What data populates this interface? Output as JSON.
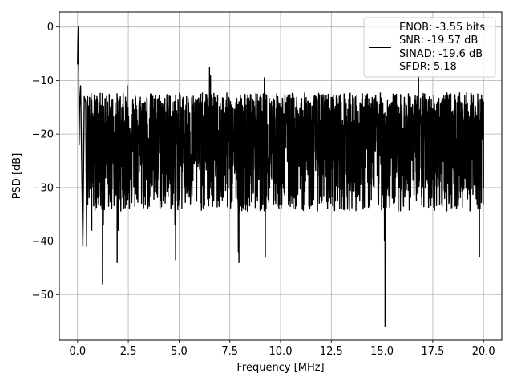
{
  "chart_data": {
    "type": "line",
    "title": "",
    "xlabel": "Frequency [MHz]",
    "ylabel": "PSD [dB]",
    "xlim": [
      -0.9,
      20.9
    ],
    "ylim": [
      -58.5,
      2.8
    ],
    "xticks": [
      0.0,
      2.5,
      5.0,
      7.5,
      10.0,
      12.5,
      15.0,
      17.5,
      20.0
    ],
    "xtick_labels": [
      "0.0",
      "2.5",
      "5.0",
      "7.5",
      "10.0",
      "12.5",
      "15.0",
      "17.5",
      "20.0"
    ],
    "yticks": [
      0,
      -10,
      -20,
      -30,
      -40,
      -50
    ],
    "ytick_labels": [
      "0",
      "−10",
      "−20",
      "−30",
      "−40",
      "−50"
    ],
    "grid": true,
    "legend_position": "top-right",
    "legend_lines": [
      "ENOB: -3.55 bits",
      "SNR: -19.57 dB",
      "SINAD: -19.6 dB",
      "SFDR: 5.18"
    ],
    "series": [
      {
        "color": "#000000",
        "noise_floor_dB": -20,
        "upper_envelope_dB": -13,
        "x": [
          0.0,
          0.02,
          0.04,
          0.06,
          0.08,
          0.1,
          0.15,
          0.2,
          0.26,
          0.33,
          0.4,
          0.45,
          0.5,
          0.7,
          1.2,
          1.23,
          1.27,
          1.95,
          2.0,
          2.45,
          4.8,
          4.83,
          6.5,
          6.55,
          7.92,
          7.95,
          9.2,
          9.25,
          15.12,
          15.15,
          15.18,
          16.8,
          19.8,
          20.0
        ],
        "y": [
          -7,
          -2,
          0,
          -9,
          -22,
          -15,
          -11,
          -24,
          -41,
          -13,
          -14,
          -41,
          -13,
          -38,
          -34,
          -48,
          -37,
          -44,
          -38,
          -11,
          -37,
          -43.5,
          -7.5,
          -9,
          -42,
          -44,
          -9.5,
          -43,
          -40,
          -56,
          -34,
          -9,
          -43,
          -14
        ]
      }
    ]
  }
}
